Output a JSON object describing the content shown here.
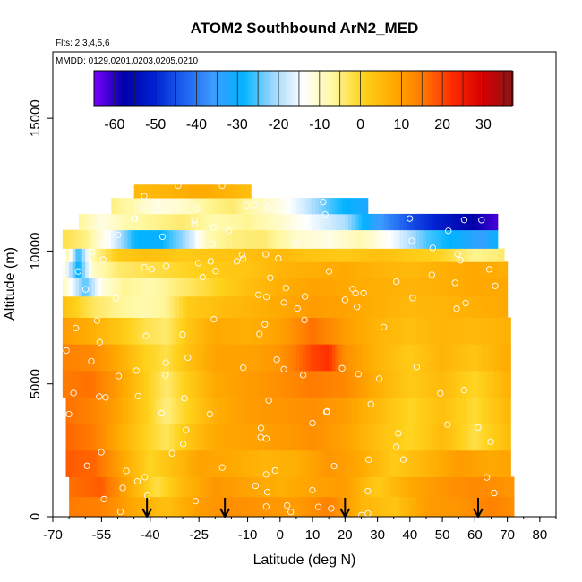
{
  "chart_data": {
    "type": "heatmap",
    "title": "ATOM2 Southbound ArN2_MED",
    "annotations": [
      "Flts: 2,3,4,5,6",
      "MMDD: 0129,0201,0203,0205,0210"
    ],
    "xlabel": "Latitude (deg N)",
    "ylabel": "Altitude (m)",
    "xlim": [
      -70,
      85
    ],
    "ylim": [
      0,
      17500
    ],
    "x_ticks": [
      -70,
      -55,
      -40,
      -25,
      -10,
      0,
      10,
      20,
      30,
      40,
      50,
      60,
      70,
      80
    ],
    "x_tick_labels": [
      "-70",
      "-55",
      "-40",
      "-25",
      "-10",
      "0",
      "10",
      "20",
      "30",
      "40",
      "50",
      "60",
      "70",
      "80"
    ],
    "y_ticks": [
      0,
      5000,
      10000,
      15000
    ],
    "y_tick_labels": [
      "0",
      "5000",
      "10000",
      "15000"
    ],
    "colorbar": {
      "range": [
        -65,
        37
      ],
      "ticks": [
        -60,
        -50,
        -40,
        -30,
        -20,
        -10,
        0,
        10,
        20,
        30
      ],
      "tick_labels": [
        "-60",
        "-50",
        "-40",
        "-30",
        "-20",
        "-10",
        "0",
        "10",
        "20",
        "30"
      ],
      "colors": [
        "#7a00ff",
        "#0000a8",
        "#0020d0",
        "#1e60f0",
        "#3c9cff",
        "#00b4ff",
        "#9fd8ff",
        "#ffffff",
        "#fff8a0",
        "#ffd21c",
        "#ffaa00",
        "#ff7a00",
        "#ff2a00",
        "#d80000",
        "#8b1414"
      ]
    },
    "transect_markers_lat": [
      -41,
      -17,
      20,
      61
    ],
    "layers": [
      {
        "z0": 0,
        "z1": 750,
        "lat0": -65,
        "lat1": 72,
        "points": [
          [
            -65,
            15
          ],
          [
            -55,
            14
          ],
          [
            -45,
            8
          ],
          [
            -35,
            4
          ],
          [
            -25,
            10
          ],
          [
            -15,
            12
          ],
          [
            -5,
            11
          ],
          [
            5,
            10
          ],
          [
            15,
            14
          ],
          [
            25,
            6
          ],
          [
            35,
            3
          ],
          [
            45,
            10
          ],
          [
            55,
            11
          ],
          [
            65,
            14
          ],
          [
            72,
            12
          ]
        ]
      },
      {
        "z0": 750,
        "z1": 1500,
        "lat0": -65,
        "lat1": 72,
        "points": [
          [
            -65,
            16
          ],
          [
            -55,
            18
          ],
          [
            -45,
            6
          ],
          [
            -38,
            -2
          ],
          [
            -30,
            5
          ],
          [
            -20,
            11
          ],
          [
            -10,
            9
          ],
          [
            0,
            7
          ],
          [
            10,
            9
          ],
          [
            20,
            10
          ],
          [
            30,
            2
          ],
          [
            40,
            8
          ],
          [
            50,
            11
          ],
          [
            60,
            13
          ],
          [
            72,
            11
          ]
        ]
      },
      {
        "z0": 1500,
        "z1": 2500,
        "lat0": -66,
        "lat1": 71,
        "points": [
          [
            -66,
            18
          ],
          [
            -57,
            17
          ],
          [
            -48,
            8
          ],
          [
            -40,
            0
          ],
          [
            -33,
            4
          ],
          [
            -25,
            9
          ],
          [
            -15,
            8
          ],
          [
            -5,
            6
          ],
          [
            5,
            7
          ],
          [
            15,
            11
          ],
          [
            25,
            8
          ],
          [
            35,
            2
          ],
          [
            45,
            6
          ],
          [
            55,
            10
          ],
          [
            65,
            8
          ],
          [
            71,
            9
          ]
        ]
      },
      {
        "z0": 2500,
        "z1": 3500,
        "lat0": -66,
        "lat1": 71,
        "points": [
          [
            -66,
            17
          ],
          [
            -58,
            15
          ],
          [
            -50,
            8
          ],
          [
            -42,
            1
          ],
          [
            -35,
            -3
          ],
          [
            -28,
            3
          ],
          [
            -20,
            8
          ],
          [
            -10,
            9
          ],
          [
            0,
            10
          ],
          [
            10,
            12
          ],
          [
            20,
            9
          ],
          [
            30,
            4
          ],
          [
            40,
            0
          ],
          [
            50,
            5
          ],
          [
            60,
            -2
          ],
          [
            71,
            5
          ]
        ]
      },
      {
        "z0": 3500,
        "z1": 4500,
        "lat0": -66,
        "lat1": 71,
        "points": [
          [
            -66,
            16
          ],
          [
            -58,
            14
          ],
          [
            -50,
            9
          ],
          [
            -42,
            2
          ],
          [
            -35,
            -5
          ],
          [
            -28,
            1
          ],
          [
            -20,
            7
          ],
          [
            -10,
            10
          ],
          [
            0,
            11
          ],
          [
            10,
            12
          ],
          [
            20,
            10
          ],
          [
            30,
            5
          ],
          [
            40,
            0
          ],
          [
            50,
            4
          ],
          [
            60,
            -1
          ],
          [
            71,
            6
          ]
        ]
      },
      {
        "z0": 4500,
        "z1": 5500,
        "lat0": -67,
        "lat1": 71,
        "points": [
          [
            -67,
            15
          ],
          [
            -58,
            16
          ],
          [
            -50,
            10
          ],
          [
            -42,
            2
          ],
          [
            -35,
            -4
          ],
          [
            -28,
            2
          ],
          [
            -20,
            8
          ],
          [
            -10,
            10
          ],
          [
            0,
            12
          ],
          [
            10,
            15
          ],
          [
            20,
            13
          ],
          [
            30,
            7
          ],
          [
            40,
            2
          ],
          [
            50,
            5
          ],
          [
            60,
            0
          ],
          [
            71,
            7
          ]
        ]
      },
      {
        "z0": 5500,
        "z1": 6500,
        "lat0": -67,
        "lat1": 71,
        "points": [
          [
            -67,
            14
          ],
          [
            -58,
            13
          ],
          [
            -50,
            8
          ],
          [
            -42,
            1
          ],
          [
            -35,
            -2
          ],
          [
            -28,
            4
          ],
          [
            -20,
            9
          ],
          [
            -10,
            9
          ],
          [
            0,
            11
          ],
          [
            10,
            20
          ],
          [
            15,
            22
          ],
          [
            20,
            12
          ],
          [
            30,
            6
          ],
          [
            40,
            2
          ],
          [
            50,
            6
          ],
          [
            60,
            3
          ],
          [
            71,
            8
          ]
        ]
      },
      {
        "z0": 6500,
        "z1": 7500,
        "lat0": -67,
        "lat1": 71,
        "points": [
          [
            -67,
            10
          ],
          [
            -58,
            7
          ],
          [
            -50,
            3
          ],
          [
            -42,
            -2
          ],
          [
            -35,
            -4
          ],
          [
            -28,
            3
          ],
          [
            -20,
            8
          ],
          [
            -10,
            7
          ],
          [
            0,
            9
          ],
          [
            10,
            16
          ],
          [
            20,
            10
          ],
          [
            30,
            6
          ],
          [
            40,
            4
          ],
          [
            50,
            6
          ],
          [
            60,
            5
          ],
          [
            71,
            7
          ]
        ]
      },
      {
        "z0": 7500,
        "z1": 8300,
        "lat0": -67,
        "lat1": 70,
        "points": [
          [
            -67,
            4
          ],
          [
            -58,
            -3
          ],
          [
            -50,
            -6
          ],
          [
            -42,
            -8
          ],
          [
            -35,
            -6
          ],
          [
            -28,
            2
          ],
          [
            -20,
            4
          ],
          [
            -10,
            6
          ],
          [
            0,
            8
          ],
          [
            10,
            10
          ],
          [
            20,
            9
          ],
          [
            30,
            7
          ],
          [
            40,
            5
          ],
          [
            50,
            6
          ],
          [
            60,
            7
          ],
          [
            70,
            8
          ]
        ]
      },
      {
        "z0": 8300,
        "z1": 9000,
        "lat0": -67,
        "lat1": 70,
        "points": [
          [
            -67,
            -8
          ],
          [
            -60,
            -25
          ],
          [
            -55,
            -12
          ],
          [
            -48,
            -6
          ],
          [
            -40,
            -8
          ],
          [
            -30,
            -4
          ],
          [
            -20,
            0
          ],
          [
            -10,
            4
          ],
          [
            0,
            7
          ],
          [
            10,
            9
          ],
          [
            20,
            8
          ],
          [
            30,
            7
          ],
          [
            40,
            6
          ],
          [
            50,
            7
          ],
          [
            60,
            8
          ],
          [
            70,
            8
          ]
        ]
      },
      {
        "z0": 9000,
        "z1": 9600,
        "lat0": -67,
        "lat1": 70,
        "points": [
          [
            -67,
            -10
          ],
          [
            -62,
            -30
          ],
          [
            -58,
            -10
          ],
          [
            -50,
            -4
          ],
          [
            -40,
            -2
          ],
          [
            -30,
            0
          ],
          [
            -20,
            2
          ],
          [
            -10,
            3
          ],
          [
            0,
            6
          ],
          [
            10,
            7
          ],
          [
            20,
            8
          ],
          [
            30,
            6
          ],
          [
            40,
            5
          ],
          [
            50,
            7
          ],
          [
            60,
            8
          ],
          [
            70,
            7
          ]
        ]
      },
      {
        "z0": 9600,
        "z1": 10100,
        "lat0": -66,
        "lat1": 69,
        "points": [
          [
            -66,
            -6
          ],
          [
            -62,
            -28
          ],
          [
            -58,
            -8
          ],
          [
            -50,
            2
          ],
          [
            -40,
            4
          ],
          [
            -30,
            2
          ],
          [
            -20,
            3
          ],
          [
            -10,
            4
          ],
          [
            0,
            5
          ],
          [
            10,
            3
          ],
          [
            20,
            2
          ],
          [
            30,
            4
          ],
          [
            40,
            2
          ],
          [
            50,
            0
          ],
          [
            60,
            -6
          ],
          [
            69,
            -4
          ]
        ]
      },
      {
        "z0": 10100,
        "z1": 10800,
        "lat0": -67,
        "lat1": 67,
        "points": [
          [
            -67,
            -2
          ],
          [
            -60,
            -5
          ],
          [
            -52,
            -15
          ],
          [
            -45,
            -28
          ],
          [
            -38,
            -30
          ],
          [
            -30,
            -22
          ],
          [
            -22,
            -8
          ],
          [
            -15,
            -5
          ],
          [
            -5,
            -4
          ],
          [
            5,
            -10
          ],
          [
            15,
            -12
          ],
          [
            25,
            -8
          ],
          [
            35,
            -15
          ],
          [
            45,
            -25
          ],
          [
            55,
            -30
          ],
          [
            62,
            -35
          ],
          [
            67,
            -30
          ]
        ]
      },
      {
        "z0": 10800,
        "z1": 11400,
        "lat0": -62,
        "lat1": 67,
        "points": [
          [
            -62,
            -6
          ],
          [
            -55,
            -12
          ],
          [
            -48,
            -8
          ],
          [
            -40,
            -6
          ],
          [
            -30,
            -4
          ],
          [
            -20,
            -8
          ],
          [
            -10,
            -6
          ],
          [
            0,
            -10
          ],
          [
            10,
            -15
          ],
          [
            20,
            -20
          ],
          [
            30,
            -35
          ],
          [
            40,
            -45
          ],
          [
            50,
            -52
          ],
          [
            60,
            -58
          ],
          [
            67,
            -62
          ]
        ]
      },
      {
        "z0": 11400,
        "z1": 12000,
        "lat0": -52,
        "lat1": 27,
        "points": [
          [
            -52,
            -5
          ],
          [
            -45,
            -8
          ],
          [
            -38,
            -12
          ],
          [
            -30,
            -10
          ],
          [
            -22,
            -6
          ],
          [
            -15,
            -4
          ],
          [
            -8,
            -8
          ],
          [
            0,
            -12
          ],
          [
            8,
            -18
          ],
          [
            15,
            -25
          ],
          [
            22,
            -30
          ],
          [
            27,
            -32
          ]
        ]
      },
      {
        "z0": 12000,
        "z1": 12500,
        "lat0": -45,
        "lat1": -9,
        "points": [
          [
            -45,
            5
          ],
          [
            -35,
            6
          ],
          [
            -25,
            8
          ],
          [
            -15,
            6
          ],
          [
            -9,
            4
          ]
        ]
      }
    ]
  }
}
